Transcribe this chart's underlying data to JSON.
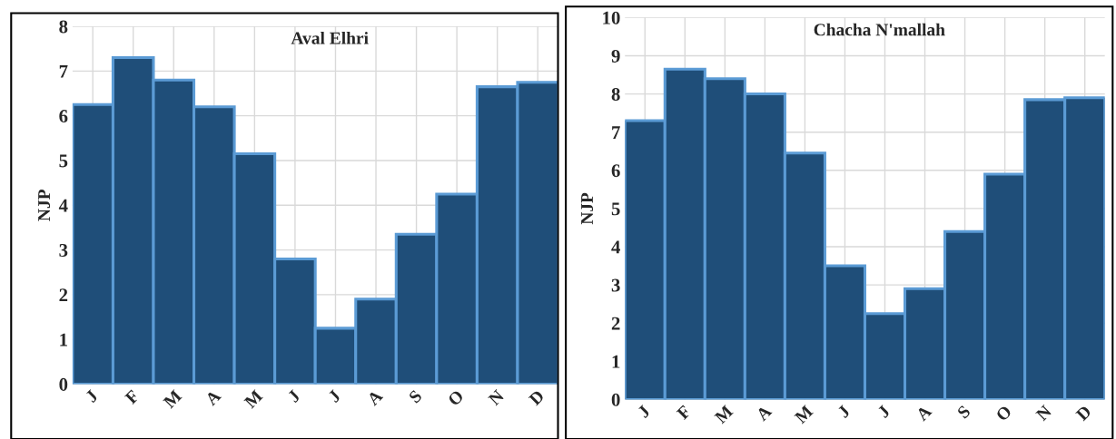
{
  "chart_data": [
    {
      "type": "bar",
      "title": "Aval Elhri",
      "ylabel": "NJP",
      "categories": [
        "J",
        "F",
        "M",
        "A",
        "M",
        "J",
        "J",
        "A",
        "S",
        "O",
        "N",
        "D"
      ],
      "values": [
        6.25,
        7.3,
        6.8,
        6.2,
        5.15,
        2.8,
        1.25,
        1.9,
        3.35,
        4.25,
        6.65,
        6.75
      ],
      "color": "#1f4e79",
      "ylim": [
        0,
        8
      ],
      "yticks": [
        0,
        1,
        2,
        3,
        4,
        5,
        6,
        7,
        8
      ],
      "grid": true
    },
    {
      "type": "bar",
      "title": "Chacha N'mallah",
      "ylabel": "NJP",
      "categories": [
        "J",
        "F",
        "M",
        "A",
        "M",
        "J",
        "J",
        "A",
        "S",
        "O",
        "N",
        "D"
      ],
      "values": [
        7.3,
        8.65,
        8.4,
        8.0,
        6.45,
        3.5,
        2.25,
        2.9,
        4.4,
        5.9,
        7.85,
        7.9
      ],
      "color": "#1f4e79",
      "ylim": [
        0,
        10
      ],
      "yticks": [
        0,
        1,
        2,
        3,
        4,
        5,
        6,
        7,
        8,
        9,
        10
      ],
      "grid": true
    }
  ]
}
